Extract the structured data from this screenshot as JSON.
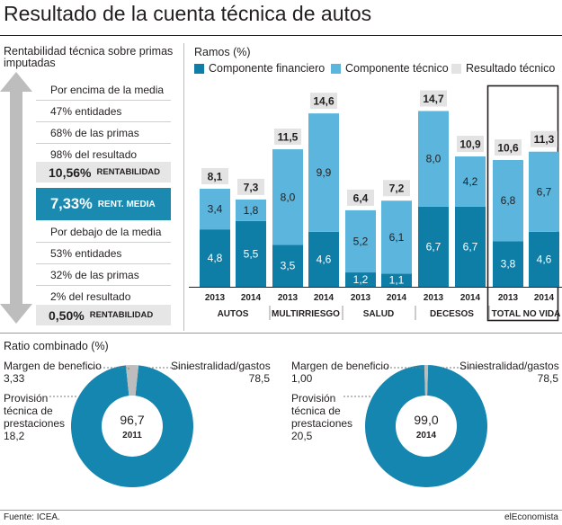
{
  "title": "Resultado de la cuenta técnica de autos",
  "left_panel": {
    "heading": "Rentabilidad técnica sobre primas imputadas",
    "above_heading": "Por encima de la media",
    "above_items": [
      "47% entidades",
      "68% de las primas",
      "98% del resultado"
    ],
    "above_value": "10,56%",
    "above_tag": "RENTABILIDAD",
    "mean_value": "7,33%",
    "mean_tag": "RENT. MEDIA",
    "below_heading": "Por debajo de la media",
    "below_items": [
      "53% entidades",
      "32% de las primas",
      "2% del resultado"
    ],
    "below_value": "0,50%",
    "below_tag": "RENTABILIDAD"
  },
  "ratio_heading": "Ratio combinado (%)",
  "donuts": {
    "d2011": {
      "margin_label": "Margen de beneficio",
      "margin_value": "3,33",
      "siniestralidad_label": "Siniestralidad/gastos",
      "siniestralidad_value": "78,5",
      "provision_label_1": "Provisión",
      "provision_label_2": "técnica de",
      "provision_label_3": "prestaciones",
      "provision_value": "18,2",
      "center_value": "96,7",
      "center_year": "2011"
    },
    "d2014": {
      "margin_label": "Margen de beneficio",
      "margin_value": "1,00",
      "siniestralidad_label": "Siniestralidad/gastos",
      "siniestralidad_value": "78,5",
      "provision_label_1": "Provisión",
      "provision_label_2": "técnica de",
      "provision_label_3": "prestaciones",
      "provision_value": "20,5",
      "center_value": "99,0",
      "center_year": "2014"
    }
  },
  "source": "Fuente: ICEA.",
  "logo": "elEconomista",
  "colors": {
    "financiero": "#0f7ea6",
    "tecnico": "#5cb5dd",
    "resultado": "#e3e3e3",
    "donut_main": "#1586b0",
    "donut_margin": "#bdbdbd"
  },
  "chart_data": [
    {
      "type": "bar",
      "title": "Ramos (%)",
      "groups": [
        "AUTOS",
        "MULTIRRIESGO",
        "SALUD",
        "DECESOS",
        "TOTAL NO VIDA"
      ],
      "categories": [
        "2013",
        "2014",
        "2013",
        "2014",
        "2013",
        "2014",
        "2013",
        "2014",
        "2013",
        "2014"
      ],
      "stacked": true,
      "series": [
        {
          "name": "Componente financiero",
          "values": [
            4.8,
            5.5,
            3.5,
            4.6,
            1.2,
            1.1,
            6.7,
            6.7,
            3.8,
            4.6
          ],
          "labels": [
            "4,8",
            "5,5",
            "3,5",
            "4,6",
            "1,2",
            "1,1",
            "6,7",
            "6,7",
            "3,8",
            "4,6"
          ]
        },
        {
          "name": "Componente técnico",
          "values": [
            3.4,
            1.8,
            8.0,
            9.9,
            5.2,
            6.1,
            8.0,
            4.2,
            6.8,
            6.7
          ],
          "labels": [
            "3,4",
            "1,8",
            "8,0",
            "9,9",
            "5,2",
            "6,1",
            "8,0",
            "4,2",
            "6,8",
            "6,7"
          ]
        },
        {
          "name": "Resultado técnico",
          "values": [
            8.1,
            7.3,
            11.5,
            14.6,
            6.4,
            7.2,
            14.7,
            10.9,
            10.6,
            11.3
          ],
          "labels": [
            "8,1",
            "7,3",
            "11,5",
            "14,6",
            "6,4",
            "7,2",
            "14,7",
            "10,9",
            "10,6",
            "11,3"
          ]
        }
      ]
    },
    {
      "type": "pie",
      "title": "Ratio combinado (%)",
      "year": "2011",
      "slices": [
        {
          "name": "Siniestralidad/gastos",
          "value": 78.5
        },
        {
          "name": "Provisión técnica de prestaciones",
          "value": 18.2
        },
        {
          "name": "Margen de beneficio",
          "value": 3.33
        }
      ],
      "center": 96.7
    },
    {
      "type": "pie",
      "title": "Ratio combinado (%)",
      "year": "2014",
      "slices": [
        {
          "name": "Siniestralidad/gastos",
          "value": 78.5
        },
        {
          "name": "Provisión técnica de prestaciones",
          "value": 20.5
        },
        {
          "name": "Margen de beneficio",
          "value": 1.0
        }
      ],
      "center": 99.0
    }
  ]
}
